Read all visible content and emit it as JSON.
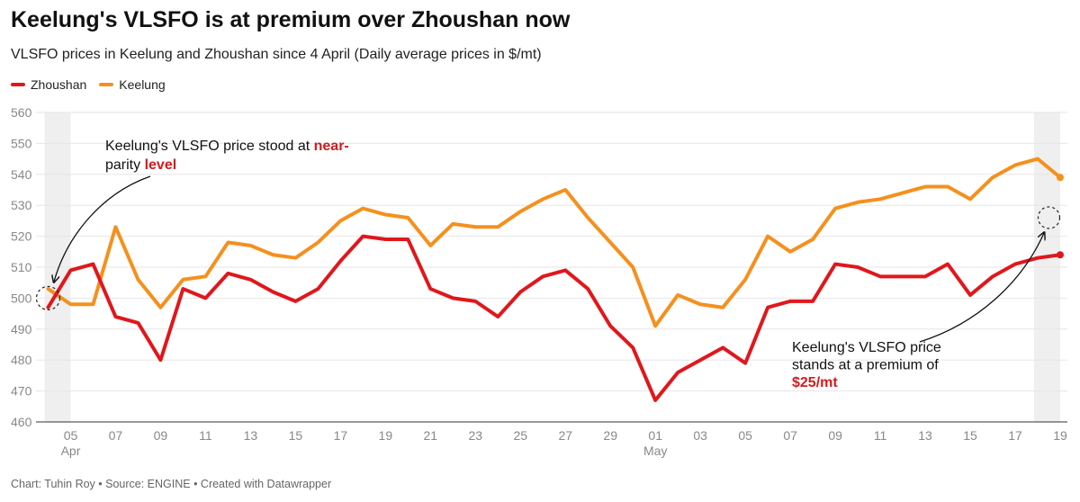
{
  "title": "Keelung's VLSFO is at premium over Zhoushan now",
  "subtitle": "VLSFO prices in Keelung and Zhoushan since 4 April (Daily average prices in $/mt)",
  "footer": "Chart: Tuhin Roy • Source: ENGINE • Created with Datawrapper",
  "colors": {
    "zhoushan": "#e0171c",
    "keelung": "#f5901e",
    "grid": "#e6e6e6",
    "band": "#efefef"
  },
  "chart_data": {
    "type": "line",
    "ylim": [
      460,
      560
    ],
    "yticks": [
      460,
      470,
      480,
      490,
      500,
      510,
      520,
      530,
      540,
      550,
      560
    ],
    "x_labels": [
      {
        "day": 1,
        "label": "05",
        "sub": "Apr"
      },
      {
        "day": 3,
        "label": "07"
      },
      {
        "day": 5,
        "label": "09"
      },
      {
        "day": 7,
        "label": "11"
      },
      {
        "day": 9,
        "label": "13"
      },
      {
        "day": 11,
        "label": "15"
      },
      {
        "day": 13,
        "label": "17"
      },
      {
        "day": 15,
        "label": "19"
      },
      {
        "day": 17,
        "label": "21"
      },
      {
        "day": 19,
        "label": "23"
      },
      {
        "day": 21,
        "label": "25"
      },
      {
        "day": 23,
        "label": "27"
      },
      {
        "day": 25,
        "label": "29"
      },
      {
        "day": 27,
        "label": "01",
        "sub": "May"
      },
      {
        "day": 29,
        "label": "03"
      },
      {
        "day": 31,
        "label": "05"
      },
      {
        "day": 33,
        "label": "07"
      },
      {
        "day": 35,
        "label": "09"
      },
      {
        "day": 37,
        "label": "11"
      },
      {
        "day": 39,
        "label": "13"
      },
      {
        "day": 41,
        "label": "15"
      },
      {
        "day": 43,
        "label": "17"
      },
      {
        "day": 45,
        "label": "19"
      }
    ],
    "x_domain": [
      0,
      45
    ],
    "highlight_days": [
      [
        0,
        1
      ],
      [
        44,
        45
      ]
    ],
    "series": [
      {
        "name": "Zhoushan",
        "color": "#e0171c",
        "values": [
          497,
          509,
          511,
          494,
          492,
          480,
          503,
          500,
          508,
          506,
          502,
          499,
          503,
          512,
          520,
          519,
          519,
          503,
          500,
          499,
          494,
          502,
          507,
          509,
          503,
          491,
          484,
          467,
          476,
          480,
          484,
          479,
          497,
          499,
          499,
          511,
          510,
          507,
          507,
          507,
          511,
          501,
          507,
          511,
          513,
          514
        ]
      },
      {
        "name": "Keelung",
        "color": "#f5901e",
        "values": [
          503,
          498,
          498,
          523,
          506,
          497,
          506,
          507,
          518,
          517,
          514,
          513,
          518,
          525,
          529,
          527,
          526,
          517,
          524,
          523,
          523,
          528,
          532,
          535,
          526,
          518,
          510,
          491,
          501,
          498,
          497,
          506,
          520,
          515,
          519,
          529,
          531,
          532,
          534,
          536,
          536,
          532,
          539,
          543,
          545,
          539
        ]
      }
    ],
    "annotations": [
      {
        "lines": [
          [
            "Keelung's VLSFO price stood at ",
            "near-"
          ],
          [
            "parity",
            " level"
          ]
        ]
      },
      {
        "lines": [
          [
            "Keelung's VLSFO price"
          ],
          [
            "stands at a premium of"
          ],
          [
            "",
            "$25/mt"
          ]
        ]
      }
    ]
  }
}
